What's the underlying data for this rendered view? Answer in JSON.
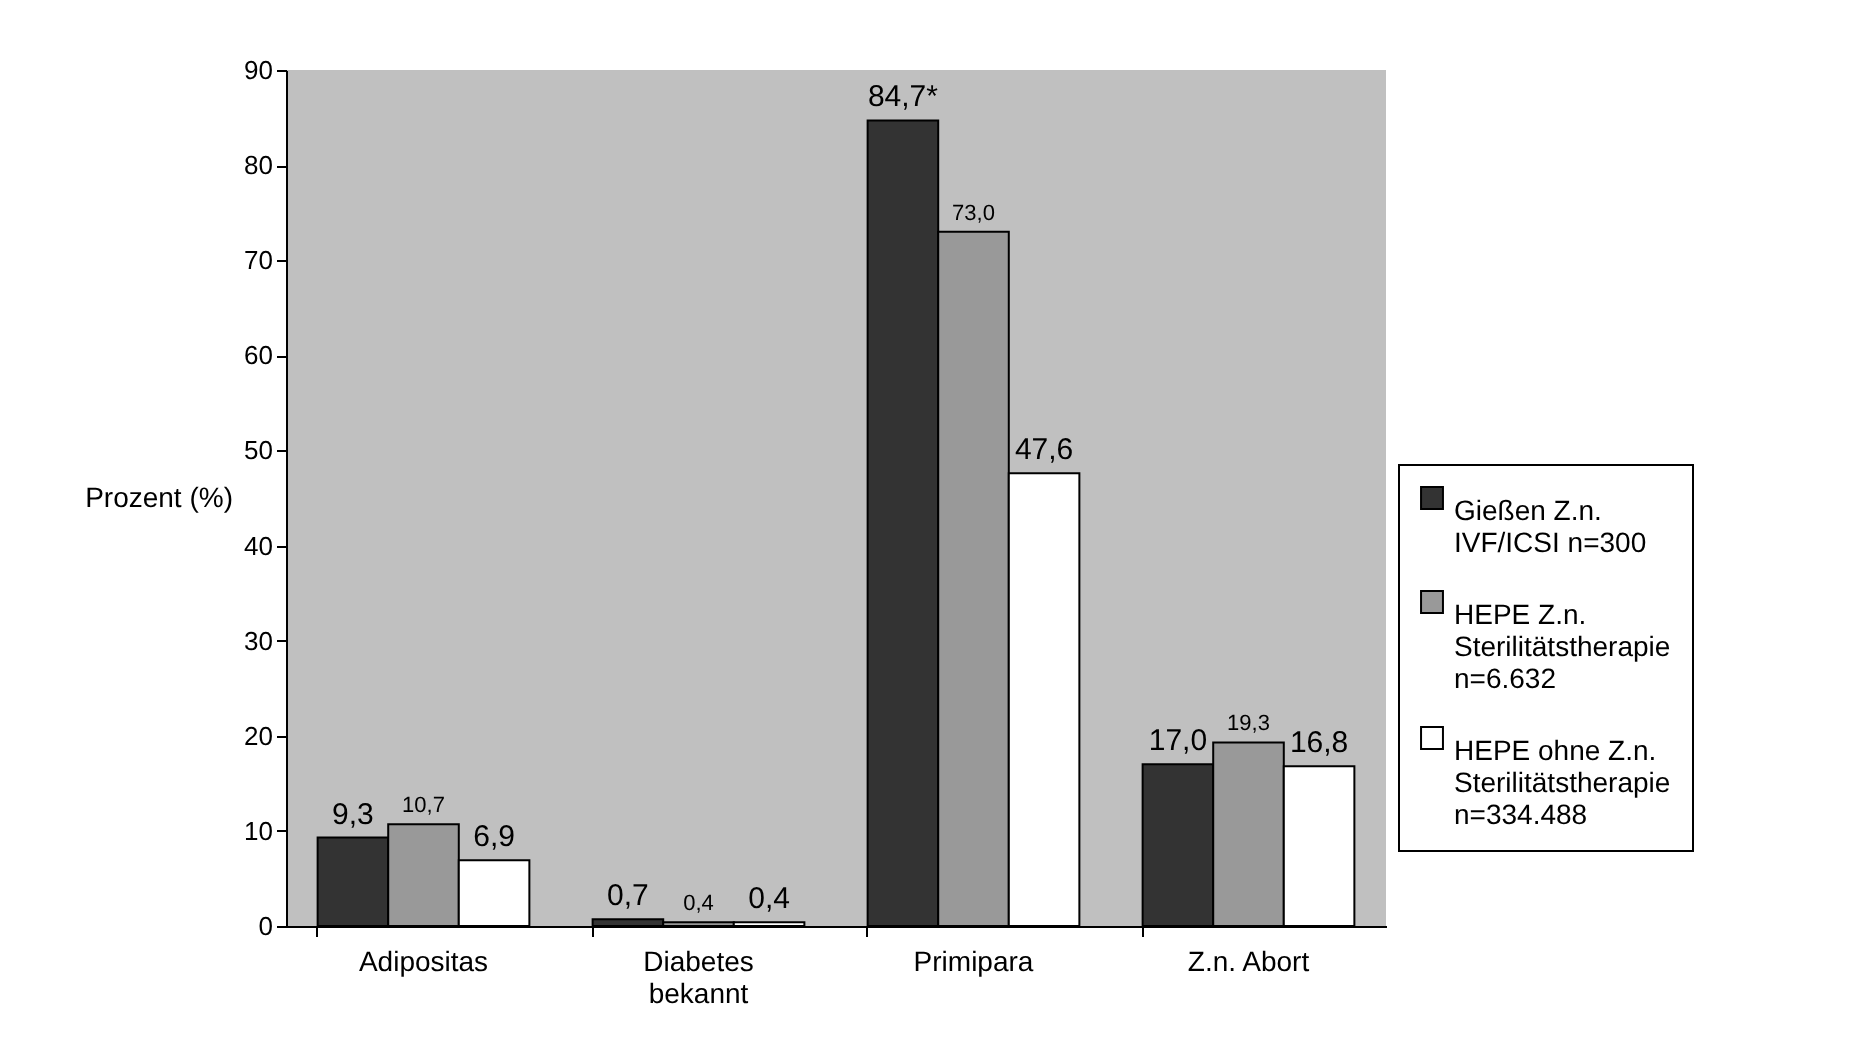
{
  "chart_data": {
    "type": "bar",
    "ylabel": "Prozent (%)",
    "categories": [
      "Adipositas",
      "Diabetes bekannt",
      "Primipara",
      "Z.n. Abort"
    ],
    "series": [
      {
        "name": "Gießen Z.n. IVF/ICSI n=300",
        "color": "#333333",
        "values": [
          9.3,
          0.7,
          84.7,
          17.0
        ],
        "value_labels": [
          "9,3",
          "0,7",
          "84,7*",
          "17,0"
        ]
      },
      {
        "name": "HEPE Z.n. Sterilitätstherapie n=6.632",
        "color": "#999999",
        "values": [
          10.7,
          0.4,
          73.0,
          19.3
        ],
        "value_labels": [
          "10,7",
          "0,4",
          "73,0",
          "19,3"
        ]
      },
      {
        "name": "HEPE ohne Z.n. Sterilitätstherapie n=334.488",
        "color": "#ffffff",
        "values": [
          6.9,
          0.4,
          47.6,
          16.8
        ],
        "value_labels": [
          "6,9",
          "0,4",
          "47,6",
          "16,8"
        ]
      }
    ],
    "ylim": [
      0,
      90
    ],
    "yticks": [
      0,
      10,
      20,
      30,
      40,
      50,
      60,
      70,
      80,
      90
    ],
    "grid": false,
    "legend": "right"
  }
}
